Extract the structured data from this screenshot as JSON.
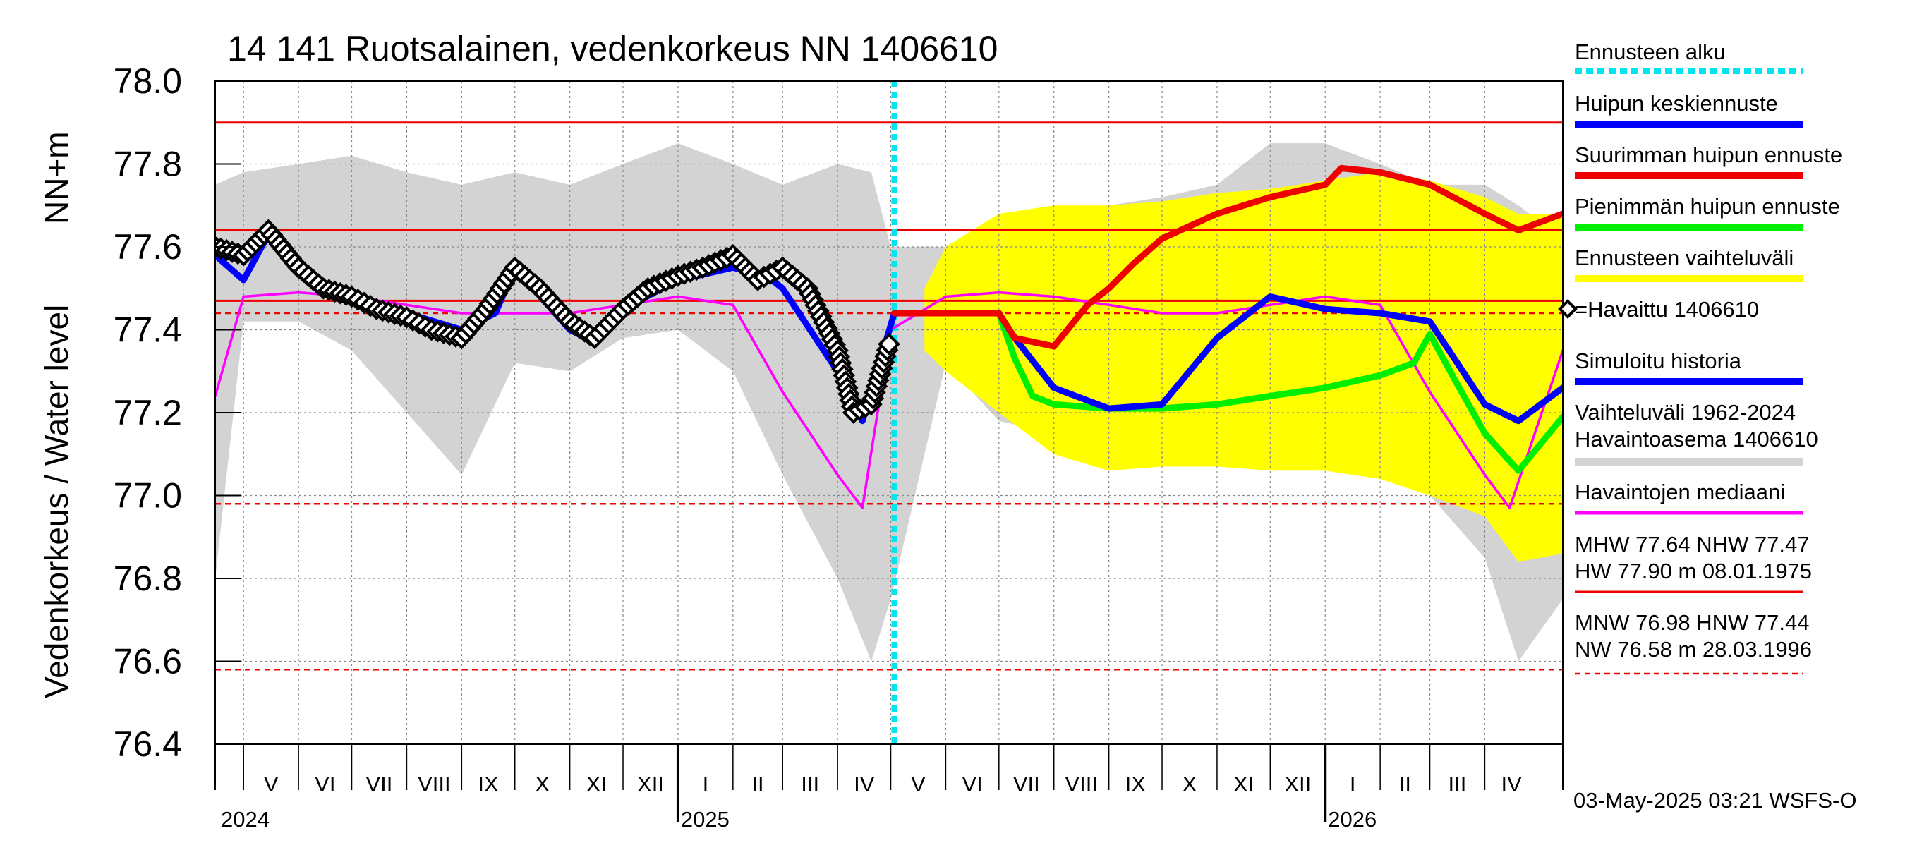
{
  "chart_data": {
    "type": "line",
    "title": "14 141 Ruotsalainen, vedenkorkeus NN 1406610",
    "ylabel": "Vedenkorkeus / Water level",
    "ylabel_unit": "NN+m",
    "ylim": [
      76.4,
      78.0
    ],
    "yticks": [
      76.4,
      76.6,
      76.8,
      77.0,
      77.2,
      77.4,
      77.6,
      77.8,
      78.0
    ],
    "ytick_labels": [
      "76.4",
      "76.6",
      "76.8",
      "77.0",
      "77.2",
      "77.4",
      "77.6",
      "77.8",
      "78.0"
    ],
    "x_start": "2024-04-15",
    "x_end": "2026-05-15",
    "months": [
      {
        "label": "V",
        "start": "2024-05-01",
        "end": "2024-06-01"
      },
      {
        "label": "VI",
        "start": "2024-06-01",
        "end": "2024-07-01"
      },
      {
        "label": "VII",
        "start": "2024-07-01",
        "end": "2024-08-01"
      },
      {
        "label": "VIII",
        "start": "2024-08-01",
        "end": "2024-09-01"
      },
      {
        "label": "IX",
        "start": "2024-09-01",
        "end": "2024-10-01"
      },
      {
        "label": "X",
        "start": "2024-10-01",
        "end": "2024-11-01"
      },
      {
        "label": "XI",
        "start": "2024-11-01",
        "end": "2024-12-01"
      },
      {
        "label": "XII",
        "start": "2024-12-01",
        "end": "2025-01-01"
      },
      {
        "label": "I",
        "start": "2025-01-01",
        "end": "2025-02-01"
      },
      {
        "label": "II",
        "start": "2025-02-01",
        "end": "2025-03-01"
      },
      {
        "label": "III",
        "start": "2025-03-01",
        "end": "2025-04-01"
      },
      {
        "label": "IV",
        "start": "2025-04-01",
        "end": "2025-05-01"
      },
      {
        "label": "V",
        "start": "2025-05-01",
        "end": "2025-06-01"
      },
      {
        "label": "VI",
        "start": "2025-06-01",
        "end": "2025-07-01"
      },
      {
        "label": "VII",
        "start": "2025-07-01",
        "end": "2025-08-01"
      },
      {
        "label": "VIII",
        "start": "2025-08-01",
        "end": "2025-09-01"
      },
      {
        "label": "IX",
        "start": "2025-09-01",
        "end": "2025-10-01"
      },
      {
        "label": "X",
        "start": "2025-10-01",
        "end": "2025-11-01"
      },
      {
        "label": "XI",
        "start": "2025-11-01",
        "end": "2025-12-01"
      },
      {
        "label": "XII",
        "start": "2025-12-01",
        "end": "2026-01-01"
      },
      {
        "label": "I",
        "start": "2026-01-01",
        "end": "2026-02-01"
      },
      {
        "label": "II",
        "start": "2026-02-01",
        "end": "2026-03-01"
      },
      {
        "label": "III",
        "start": "2026-03-01",
        "end": "2026-04-01"
      },
      {
        "label": "IV",
        "start": "2026-04-01",
        "end": "2026-05-01"
      }
    ],
    "years": [
      {
        "label": "2024",
        "date": "2024-04-15"
      },
      {
        "label": "2025",
        "date": "2025-01-01"
      },
      {
        "label": "2026",
        "date": "2026-01-01"
      }
    ],
    "forecast_start": "2025-05-03",
    "reference_lines": [
      {
        "name": "HW",
        "value": 77.9,
        "style": "solid"
      },
      {
        "name": "MHW",
        "value": 77.64,
        "style": "solid"
      },
      {
        "name": "NHW",
        "value": 77.47,
        "style": "solid"
      },
      {
        "name": "HNW",
        "value": 77.44,
        "style": "dashed"
      },
      {
        "name": "MNW",
        "value": 76.98,
        "style": "dashed"
      },
      {
        "name": "NW",
        "value": 76.58,
        "style": "dashed"
      }
    ],
    "series": [
      {
        "name": "Vaihteluväli 1962-2024 Havaintoasema 1406610",
        "kind": "band",
        "color": "#d3d3d3",
        "x": [
          "2024-04-15",
          "2024-05-01",
          "2024-06-01",
          "2024-07-01",
          "2024-08-01",
          "2024-09-01",
          "2024-10-01",
          "2024-11-01",
          "2024-12-01",
          "2025-01-01",
          "2025-02-01",
          "2025-03-01",
          "2025-04-01",
          "2025-04-20",
          "2025-05-01",
          "2025-06-01",
          "2025-07-01",
          "2025-08-01",
          "2025-09-01",
          "2025-10-01",
          "2025-11-01",
          "2025-12-01",
          "2026-01-01",
          "2026-02-01",
          "2026-03-01",
          "2026-04-01",
          "2026-04-20",
          "2026-05-15"
        ],
        "lower": [
          76.8,
          77.42,
          77.42,
          77.35,
          77.2,
          77.05,
          77.32,
          77.3,
          77.38,
          77.4,
          77.3,
          77.05,
          76.8,
          76.6,
          76.75,
          77.32,
          77.18,
          77.15,
          77.15,
          77.1,
          77.25,
          77.3,
          77.25,
          77.3,
          77.0,
          76.85,
          76.6,
          76.75
        ],
        "upper": [
          77.75,
          77.78,
          77.8,
          77.82,
          77.78,
          77.75,
          77.78,
          77.75,
          77.8,
          77.85,
          77.8,
          77.75,
          77.8,
          77.78,
          77.6,
          77.6,
          77.65,
          77.68,
          77.7,
          77.72,
          77.75,
          77.85,
          77.85,
          77.8,
          77.75,
          77.75,
          77.7,
          77.62
        ]
      },
      {
        "name": "Ennusteen vaihteluväli",
        "kind": "band",
        "color": "#ffff00",
        "x": [
          "2025-05-20",
          "2025-06-01",
          "2025-07-01",
          "2025-08-01",
          "2025-09-01",
          "2025-10-01",
          "2025-11-01",
          "2025-12-01",
          "2026-01-01",
          "2026-02-01",
          "2026-03-01",
          "2026-04-01",
          "2026-04-20",
          "2026-05-15"
        ],
        "lower": [
          77.35,
          77.3,
          77.2,
          77.1,
          77.06,
          77.07,
          77.07,
          77.06,
          77.06,
          77.04,
          77.0,
          76.95,
          76.84,
          76.86
        ],
        "upper": [
          77.5,
          77.6,
          77.68,
          77.7,
          77.7,
          77.71,
          77.73,
          77.74,
          77.76,
          77.78,
          77.76,
          77.72,
          77.68,
          77.68
        ]
      },
      {
        "name": "Havaintojen mediaani",
        "kind": "line",
        "color": "#ff00ff",
        "x": [
          "2024-04-15",
          "2024-05-01",
          "2024-06-01",
          "2024-07-01",
          "2024-08-01",
          "2024-09-01",
          "2024-10-01",
          "2024-11-01",
          "2024-12-01",
          "2025-01-01",
          "2025-02-01",
          "2025-03-01",
          "2025-04-01",
          "2025-04-15",
          "2025-05-01",
          "2025-06-01",
          "2025-07-01",
          "2025-08-01",
          "2025-09-01",
          "2025-10-01",
          "2025-11-01",
          "2025-12-01",
          "2026-01-01",
          "2026-02-01",
          "2026-03-01",
          "2026-04-01",
          "2026-04-15",
          "2026-05-15"
        ],
        "y": [
          77.24,
          77.48,
          77.49,
          77.48,
          77.46,
          77.44,
          77.44,
          77.44,
          77.46,
          77.48,
          77.46,
          77.25,
          77.05,
          76.97,
          77.4,
          77.48,
          77.49,
          77.48,
          77.46,
          77.44,
          77.44,
          77.46,
          77.48,
          77.46,
          77.25,
          77.05,
          76.97,
          77.35
        ]
      },
      {
        "name": "Simuloitu historia",
        "kind": "line",
        "color": "#0000ff",
        "x": [
          "2024-04-15",
          "2024-05-01",
          "2024-05-15",
          "2024-06-01",
          "2024-07-01",
          "2024-08-01",
          "2024-09-01",
          "2024-09-20",
          "2024-10-01",
          "2024-11-01",
          "2024-11-15",
          "2024-12-01",
          "2025-01-01",
          "2025-02-01",
          "2025-02-20",
          "2025-03-01",
          "2025-04-01",
          "2025-04-15",
          "2025-05-03"
        ],
        "y": [
          77.58,
          77.52,
          77.63,
          77.55,
          77.47,
          77.44,
          77.4,
          77.44,
          77.55,
          77.4,
          77.37,
          77.45,
          77.52,
          77.55,
          77.53,
          77.5,
          77.3,
          77.18,
          77.44
        ]
      },
      {
        "name": "Havaittu 1406610",
        "kind": "markers",
        "color": "#000000",
        "x": [
          "2024-04-15",
          "2024-05-01",
          "2024-05-15",
          "2024-06-01",
          "2024-06-15",
          "2024-07-01",
          "2024-07-15",
          "2024-08-01",
          "2024-08-15",
          "2024-09-01",
          "2024-09-15",
          "2024-10-01",
          "2024-10-15",
          "2024-11-01",
          "2024-11-15",
          "2024-12-01",
          "2024-12-15",
          "2025-01-01",
          "2025-01-15",
          "2025-02-01",
          "2025-02-15",
          "2025-03-01",
          "2025-03-15",
          "2025-04-01",
          "2025-04-10",
          "2025-04-20",
          "2025-05-01"
        ],
        "y": [
          77.6,
          77.58,
          77.64,
          77.55,
          77.5,
          77.48,
          77.45,
          77.43,
          77.4,
          77.38,
          77.45,
          77.55,
          77.5,
          77.42,
          77.38,
          77.45,
          77.5,
          77.53,
          77.55,
          77.58,
          77.52,
          77.55,
          77.5,
          77.35,
          77.2,
          77.22,
          77.38
        ]
      },
      {
        "name": "Pienimmän huipun ennuste",
        "kind": "line",
        "color": "#00ee00",
        "x": [
          "2025-05-03",
          "2025-06-01",
          "2025-07-01",
          "2025-07-10",
          "2025-07-20",
          "2025-08-01",
          "2025-09-01",
          "2025-10-01",
          "2025-11-01",
          "2025-12-01",
          "2026-01-01",
          "2026-02-01",
          "2026-02-20",
          "2026-03-01",
          "2026-03-15",
          "2026-04-01",
          "2026-04-20",
          "2026-05-15"
        ],
        "y": [
          77.44,
          77.44,
          77.44,
          77.33,
          77.24,
          77.22,
          77.21,
          77.21,
          77.22,
          77.24,
          77.26,
          77.29,
          77.32,
          77.39,
          77.28,
          77.15,
          77.06,
          77.19
        ]
      },
      {
        "name": "Huipun keskiennuste",
        "kind": "line",
        "color": "#0000ff",
        "x": [
          "2025-05-03",
          "2025-06-01",
          "2025-07-01",
          "2025-07-10",
          "2025-08-01",
          "2025-09-01",
          "2025-10-01",
          "2025-11-01",
          "2025-12-01",
          "2026-01-01",
          "2026-02-01",
          "2026-03-01",
          "2026-04-01",
          "2026-04-20",
          "2026-05-15"
        ],
        "y": [
          77.44,
          77.44,
          77.44,
          77.38,
          77.26,
          77.21,
          77.22,
          77.38,
          77.48,
          77.45,
          77.44,
          77.42,
          77.22,
          77.18,
          77.26
        ]
      },
      {
        "name": "Suurimman huipun ennuste",
        "kind": "line",
        "color": "#ee0000",
        "x": [
          "2025-05-03",
          "2025-06-01",
          "2025-07-01",
          "2025-07-10",
          "2025-08-01",
          "2025-08-20",
          "2025-09-01",
          "2025-09-15",
          "2025-10-01",
          "2025-11-01",
          "2025-12-01",
          "2026-01-01",
          "2026-01-10",
          "2026-02-01",
          "2026-03-01",
          "2026-04-01",
          "2026-04-20",
          "2026-05-15"
        ],
        "y": [
          77.44,
          77.44,
          77.44,
          77.38,
          77.36,
          77.46,
          77.5,
          77.56,
          77.62,
          77.68,
          77.72,
          77.75,
          77.79,
          77.78,
          77.75,
          77.68,
          77.64,
          77.68
        ]
      }
    ],
    "legend": {
      "position": "right",
      "items": [
        {
          "label": "Ennusteen alku",
          "color": "#00e5ee",
          "style": "dotted"
        },
        {
          "label": "Huipun keskiennuste",
          "color": "#0000ff",
          "style": "solid"
        },
        {
          "label": "Suurimman huipun ennuste",
          "color": "#ee0000",
          "style": "solid"
        },
        {
          "label": "Pienimmän huipun ennuste",
          "color": "#00ee00",
          "style": "solid"
        },
        {
          "label": "Ennusteen vaihteluväli",
          "color": "#ffff00",
          "style": "solid"
        },
        {
          "label": "=Havaittu 1406610",
          "color": "#000000",
          "style": "marker"
        },
        {
          "label": "Simuloitu historia",
          "color": "#0000ff",
          "style": "solid"
        },
        {
          "label": "Vaihteluväli 1962-2024",
          "label2": " Havaintoasema 1406610",
          "color": "#d3d3d3",
          "style": "solid"
        },
        {
          "label": "Havaintojen mediaani",
          "color": "#ff00ff",
          "style": "solid"
        }
      ]
    },
    "stats": {
      "line1": "MHW  77.64 NHW  77.47",
      "line2": "HW  77.90 m 08.01.1975",
      "line3": "MNW  76.98 HNW  77.44",
      "line4": "NW  76.58 m 28.03.1996"
    },
    "footer": "03-May-2025 03:21 WSFS-O"
  }
}
